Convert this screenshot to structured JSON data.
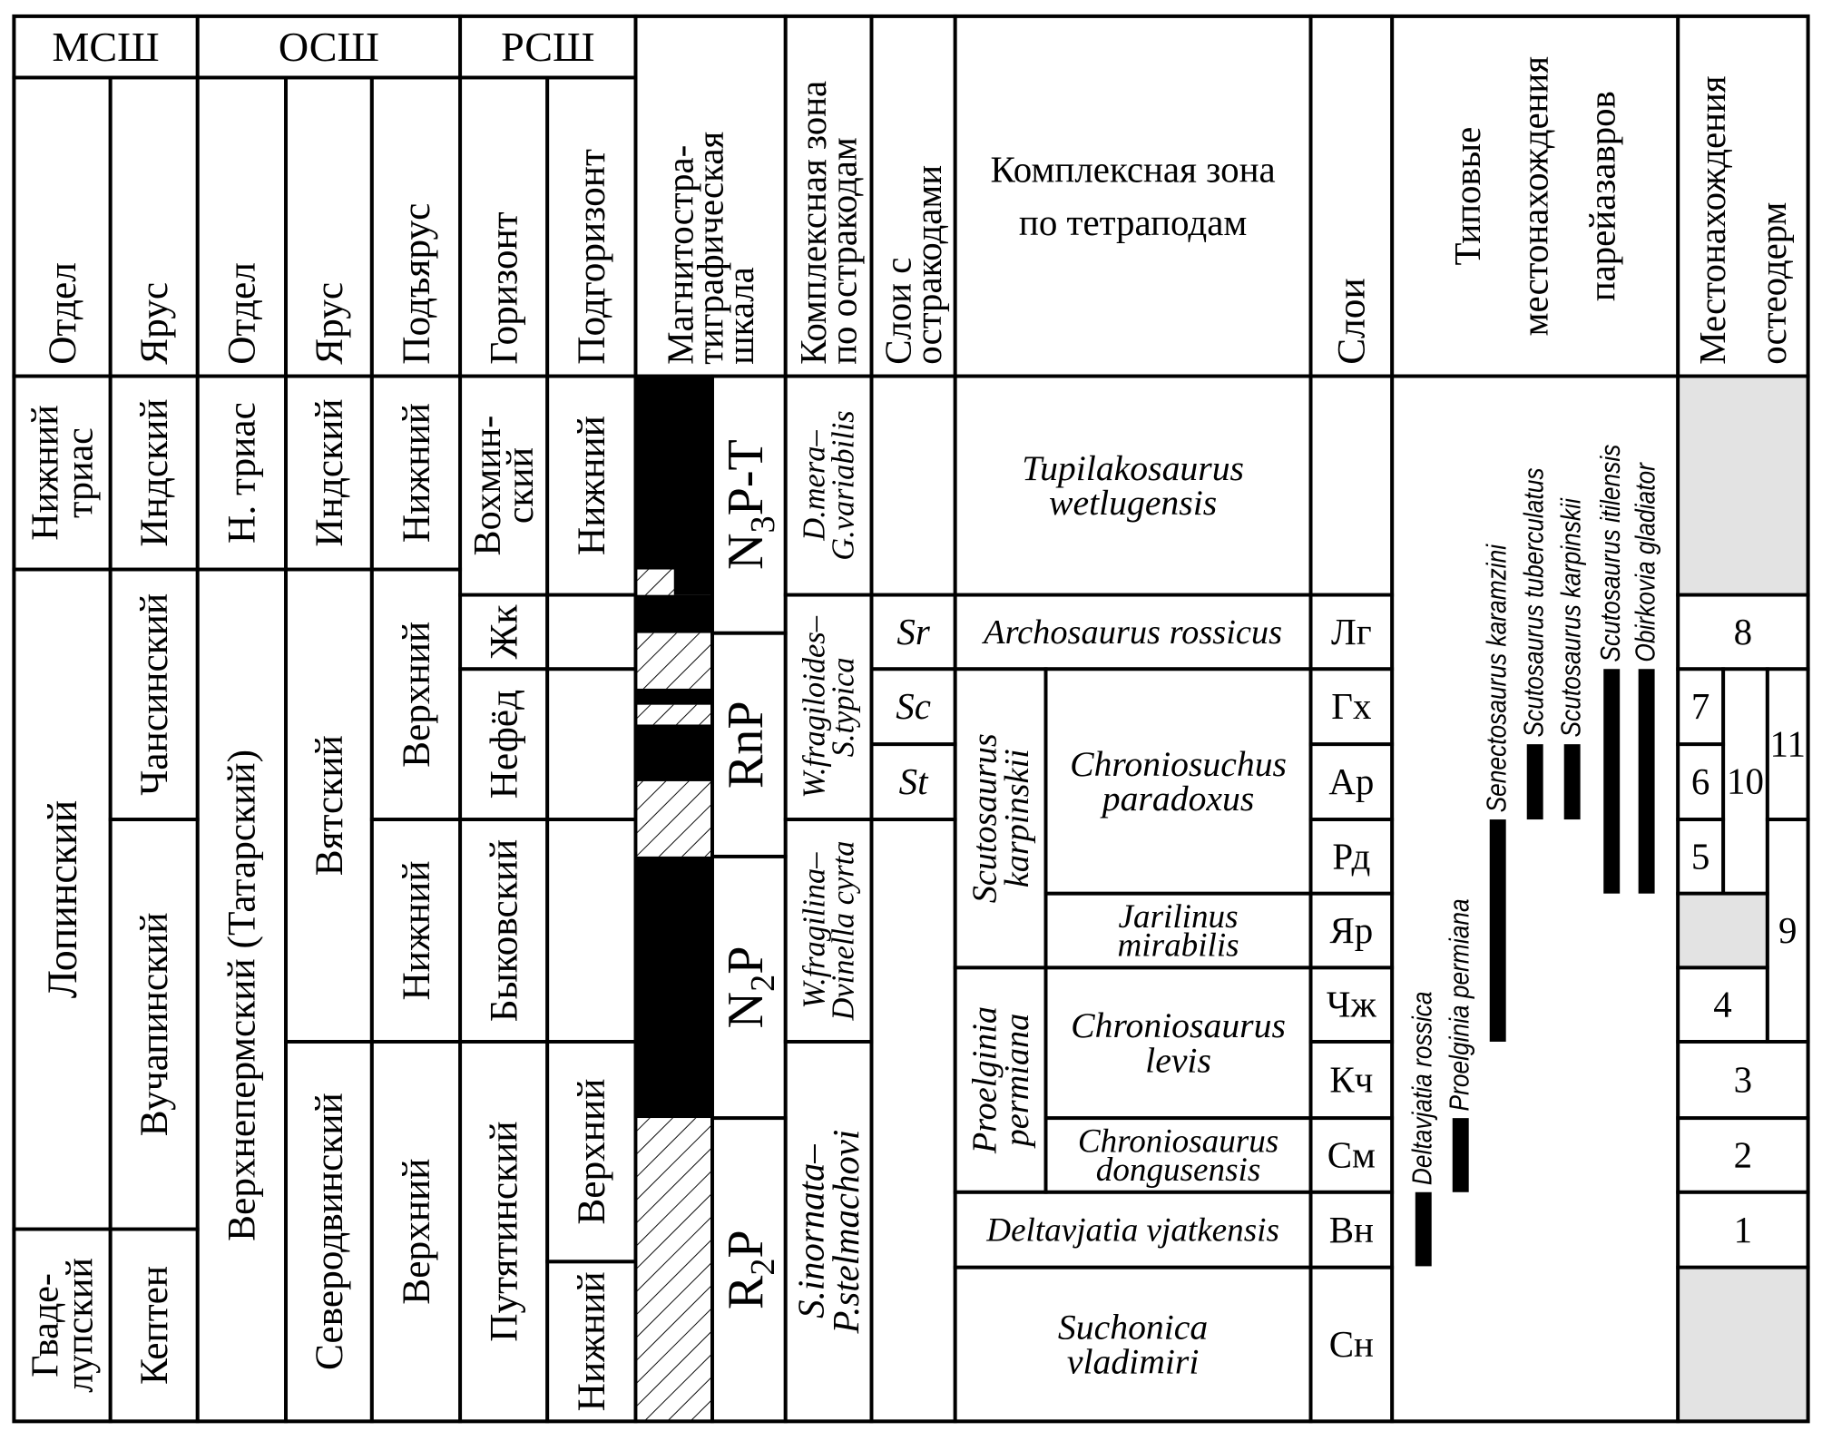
{
  "colors": {
    "line": "#000000",
    "no_data_fill": "#e3e3e3",
    "normal_polarity": "#000000"
  },
  "headers": {
    "mssh": [
      "МСШ"
    ],
    "ossh": [
      "ОСШ"
    ],
    "rssh": [
      "РСШ"
    ],
    "mssh_otdel": [
      "Отдел"
    ],
    "mssh_yarus": [
      "Ярус"
    ],
    "ossh_otdel": [
      "Отдел"
    ],
    "ossh_yarus": [
      "Ярус"
    ],
    "ossh_podyarus": [
      "Подъярус"
    ],
    "rssh_gorizont": [
      "Горизонт"
    ],
    "rssh_podgorizont": [
      "Подгоризонт"
    ],
    "magnet": [
      "Магнитостра-",
      "тиграфическая",
      "шкала"
    ],
    "ostracod_zone": [
      "Комплексная зона",
      "по остракодам"
    ],
    "ostracod_beds": [
      "Слои с",
      "остракодами"
    ],
    "tetrapod_zone": [
      "Комплексная зона",
      "по тетраподам"
    ],
    "beds": [
      "Слои"
    ],
    "pareiasaur": [
      "Типовые",
      "местонахождения",
      "парейазавров"
    ],
    "osteoderm": [
      "Местонахождения",
      "остеодерм"
    ]
  },
  "mssh": {
    "otdel": [
      [
        "Нижний",
        "триас"
      ],
      [
        "Лопинский"
      ],
      [
        "Гваде-",
        "лупский"
      ]
    ],
    "yarus": [
      [
        "Индский"
      ],
      [
        "Чансинский"
      ],
      [
        "Вучапинский"
      ],
      [
        "Кептен"
      ]
    ]
  },
  "ossh": {
    "otdel": [
      [
        "Н. триас"
      ],
      [
        "Верхнепермский (Татарский)"
      ]
    ],
    "yarus": [
      [
        "Индский"
      ],
      [
        "Вятский"
      ],
      [
        "Северодвинский"
      ]
    ],
    "podyarus": [
      [
        "Нижний"
      ],
      [
        "Верхний"
      ],
      [
        "Нижний"
      ],
      [
        "Верхний"
      ]
    ]
  },
  "rssh": {
    "gorizont": [
      [
        "Вохмин-",
        "ский"
      ],
      [
        "Жк"
      ],
      [
        "Нефёд"
      ],
      [
        "Быковский"
      ],
      [
        "Путятинский"
      ]
    ],
    "podgorizont": [
      [
        "Нижний"
      ],
      [
        "Верхний"
      ],
      [
        "Нижний"
      ]
    ]
  },
  "magnetozones": [
    {
      "base": "N",
      "sub": "3",
      "rest": "P-T"
    },
    {
      "base": "RnP",
      "sub": "",
      "rest": ""
    },
    {
      "base": "N",
      "sub": "2",
      "rest": "P"
    },
    {
      "base": "R",
      "sub": "2",
      "rest": "P"
    }
  ],
  "ostracod_zones": [
    [
      "D.mera–",
      "G.variabilis"
    ],
    [
      "W.fragiloides–",
      "S.typica"
    ],
    [
      "W.fragilina–",
      "Dvinella cyrta"
    ],
    [
      "S.inornata–",
      "P.stelmachovi"
    ]
  ],
  "ostracod_beds": [
    [
      "Sr"
    ],
    [
      "Sc"
    ],
    [
      "St"
    ]
  ],
  "tetrapod_zones": {
    "tupilakosaurus": [
      "Tupilakosaurus",
      "wetlugensis"
    ],
    "archosaurus": [
      "Archosaurus rossicus"
    ],
    "scutosaurus": [
      "Scutosaurus",
      "karpinskii"
    ],
    "proelginia": [
      "Proelginia",
      "permiana"
    ],
    "chroniosuchus": [
      "Chroniosuchus",
      "paradoxus"
    ],
    "jarilinus": [
      "Jarilinus",
      "mirabilis"
    ],
    "chroniosaurus_levis": [
      "Chroniosaurus",
      "levis"
    ],
    "chroniosaurus_dongusensis": [
      "Chroniosaurus",
      "dongusensis"
    ],
    "deltavjatia": [
      "Deltavjatia vjatkensis"
    ],
    "suchonica": [
      "Suchonica",
      "vladimiri"
    ]
  },
  "beds": [
    [
      "Лг"
    ],
    [
      "Гх"
    ],
    [
      "Ар"
    ],
    [
      "Рд"
    ],
    [
      "Яр"
    ],
    [
      "Чж"
    ],
    [
      "Кч"
    ],
    [
      "См"
    ],
    [
      "Вн"
    ],
    [
      "Сн"
    ]
  ],
  "pareiasaurs": [
    [
      "Deltavjatia rossica"
    ],
    [
      "Proelginia permiana"
    ],
    [
      "Senectosaurus karamzini"
    ],
    [
      "Scutosaurus tuberculatus"
    ],
    [
      "Scutosaurus karpinskii"
    ],
    [
      "Scutosaurus itilensis"
    ],
    [
      "Obirkovia gladiator"
    ]
  ],
  "osteoderm_localities": [
    [
      "8"
    ],
    [
      "7"
    ],
    [
      "6"
    ],
    [
      "5"
    ],
    [
      "10"
    ],
    [
      "11"
    ],
    [
      "9"
    ],
    [
      "4"
    ],
    [
      "3"
    ],
    [
      "2"
    ],
    [
      "1"
    ]
  ]
}
